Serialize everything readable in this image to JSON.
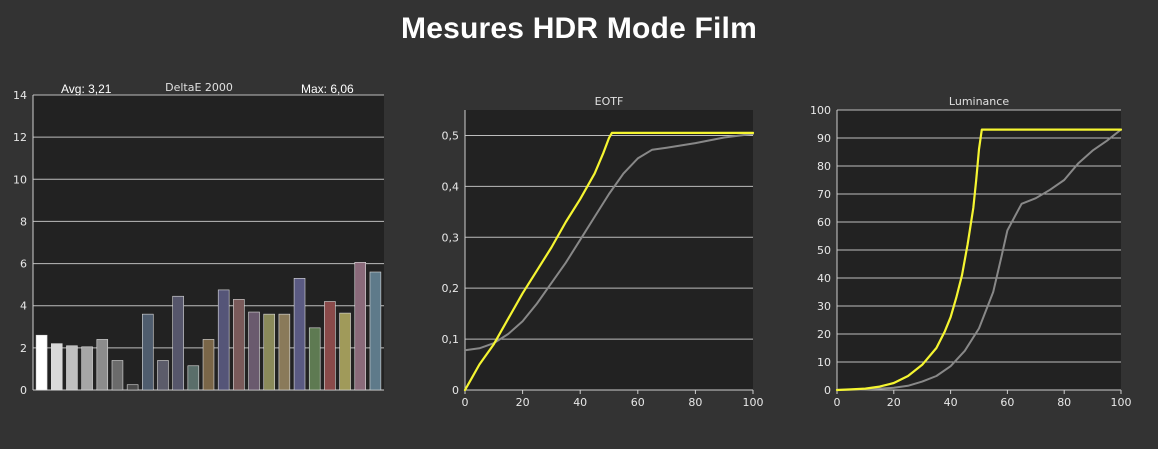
{
  "page": {
    "title": "Mesures HDR Mode Film"
  },
  "colors": {
    "background": "#333333",
    "plot_bg": "#222222",
    "grid": "#bdbdbd",
    "measured": "#f5f531",
    "target": "#888888"
  },
  "chart_data": [
    {
      "type": "bar",
      "title": "DeltaE 2000",
      "avg_label": "Avg: 3,21",
      "max_label": "Max: 6,06",
      "ylim": [
        0,
        14
      ],
      "yticks": [
        "0",
        "2",
        "4",
        "6",
        "8",
        "10",
        "12",
        "14"
      ],
      "values": [
        2.6,
        2.2,
        2.1,
        2.05,
        2.4,
        1.4,
        0.25,
        3.6,
        1.4,
        4.45,
        1.15,
        2.4,
        4.75,
        4.3,
        3.7,
        3.6,
        3.6,
        5.3,
        2.95,
        4.2,
        3.65,
        6.06,
        5.6
      ],
      "bar_colors": [
        "#ffffff",
        "#d9d9d9",
        "#bfbfbf",
        "#a6a6a6",
        "#8c8c8c",
        "#6b6b6b",
        "#4a4a4a",
        "#4f5d6e",
        "#5c5c6a",
        "#56566b",
        "#5a6e6a",
        "#7a6648",
        "#555578",
        "#7a5a5a",
        "#6a5a6e",
        "#8a8a5a",
        "#8a7a5a",
        "#5a5a82",
        "#5e7a52",
        "#8a4a4a",
        "#a09a5a",
        "#8a6a7a",
        "#5e7a8a"
      ]
    },
    {
      "type": "line",
      "title": "EOTF",
      "xlim": [
        0,
        100
      ],
      "ylim": [
        0,
        0.55
      ],
      "xticks": [
        "0",
        "20",
        "40",
        "60",
        "80",
        "100"
      ],
      "yticks": [
        "0",
        "0,1",
        "0,2",
        "0,3",
        "0,4",
        "0,5"
      ],
      "ytick_values": [
        0,
        0.1,
        0.2,
        0.3,
        0.4,
        0.5
      ],
      "series": [
        {
          "color": "#f5f531",
          "x": [
            0,
            2,
            5,
            10,
            15,
            20,
            25,
            30,
            35,
            40,
            45,
            48,
            50,
            51,
            55,
            60,
            70,
            80,
            90,
            100
          ],
          "y": [
            0.0,
            0.02,
            0.05,
            0.09,
            0.14,
            0.19,
            0.235,
            0.28,
            0.33,
            0.375,
            0.425,
            0.465,
            0.495,
            0.505,
            0.505,
            0.505,
            0.505,
            0.505,
            0.505,
            0.505
          ]
        },
        {
          "color": "#888888",
          "x": [
            0,
            5,
            10,
            15,
            20,
            25,
            30,
            35,
            40,
            45,
            50,
            55,
            60,
            65,
            70,
            80,
            90,
            100
          ],
          "y": [
            0.078,
            0.082,
            0.092,
            0.11,
            0.135,
            0.17,
            0.21,
            0.25,
            0.295,
            0.34,
            0.385,
            0.425,
            0.455,
            0.472,
            0.476,
            0.485,
            0.496,
            0.503
          ]
        }
      ]
    },
    {
      "type": "line",
      "title": "Luminance",
      "xlim": [
        0,
        100
      ],
      "ylim": [
        0,
        100
      ],
      "xticks": [
        "0",
        "20",
        "40",
        "60",
        "80",
        "100"
      ],
      "yticks": [
        "0",
        "10",
        "20",
        "30",
        "40",
        "50",
        "60",
        "70",
        "80",
        "90",
        "100"
      ],
      "ytick_values": [
        0,
        10,
        20,
        30,
        40,
        50,
        60,
        70,
        80,
        90,
        100
      ],
      "series": [
        {
          "color": "#f5f531",
          "x": [
            0,
            5,
            10,
            15,
            20,
            25,
            30,
            35,
            38,
            40,
            42,
            44,
            46,
            48,
            49,
            50,
            51,
            55,
            60,
            70,
            80,
            90,
            100
          ],
          "y": [
            0,
            0.2,
            0.5,
            1.2,
            2.5,
            5,
            9,
            15,
            21,
            26,
            33,
            41,
            52,
            65,
            75,
            86,
            93,
            93,
            93,
            93,
            93,
            93,
            93
          ]
        },
        {
          "color": "#888888",
          "x": [
            0,
            10,
            20,
            25,
            30,
            35,
            40,
            45,
            50,
            55,
            58,
            60,
            65,
            70,
            75,
            80,
            85,
            90,
            95,
            100
          ],
          "y": [
            0,
            0.2,
            0.8,
            1.5,
            3,
            5,
            8.5,
            14,
            22,
            35,
            48,
            57,
            66.5,
            68.5,
            71.5,
            75,
            81,
            85.5,
            89,
            93
          ]
        }
      ]
    }
  ]
}
